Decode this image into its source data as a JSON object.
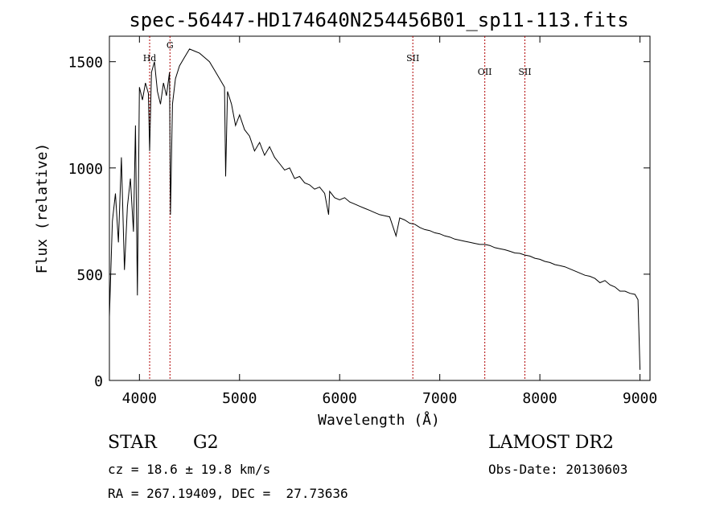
{
  "chart_data": {
    "type": "line",
    "title": "spec-56447-HD174640N254456B01_sp11-113.fits",
    "xlabel": "Wavelength (Å)",
    "ylabel": "Flux (relative)",
    "xlim": [
      3700,
      9100
    ],
    "ylim": [
      0,
      1620
    ],
    "x_ticks": [
      4000,
      5000,
      6000,
      7000,
      8000,
      9000
    ],
    "y_ticks": [
      0,
      500,
      1000,
      1500
    ],
    "grid": false,
    "lines": [
      {
        "label": "Hd",
        "x": 4102
      },
      {
        "label": "G",
        "x": 4305
      },
      {
        "label": "SII",
        "x": 6731
      },
      {
        "label": "OII",
        "x": 7450
      },
      {
        "label": "SII",
        "x": 7850
      }
    ],
    "series": [
      {
        "x": [
          3700,
          3730,
          3760,
          3790,
          3820,
          3850,
          3880,
          3910,
          3940,
          3960,
          3980,
          4000,
          4030,
          4060,
          4090,
          4102,
          4120,
          4150,
          4180,
          4210,
          4240,
          4270,
          4300,
          4310,
          4330,
          4360,
          4400,
          4450,
          4500,
          4550,
          4600,
          4650,
          4700,
          4750,
          4800,
          4850,
          4861,
          4880,
          4920,
          4960,
          5000,
          5050,
          5100,
          5150,
          5200,
          5250,
          5300,
          5350,
          5400,
          5450,
          5500,
          5550,
          5600,
          5650,
          5700,
          5750,
          5800,
          5850,
          5890,
          5900,
          5950,
          6000,
          6050,
          6100,
          6150,
          6200,
          6250,
          6300,
          6350,
          6400,
          6450,
          6500,
          6563,
          6600,
          6650,
          6700,
          6750,
          6800,
          6850,
          6900,
          6950,
          7000,
          7050,
          7100,
          7150,
          7200,
          7250,
          7300,
          7350,
          7400,
          7450,
          7500,
          7550,
          7600,
          7650,
          7700,
          7750,
          7800,
          7850,
          7900,
          7950,
          8000,
          8050,
          8100,
          8150,
          8200,
          8250,
          8300,
          8350,
          8400,
          8450,
          8500,
          8550,
          8600,
          8650,
          8700,
          8750,
          8800,
          8850,
          8900,
          8950,
          8980,
          9000
        ],
        "y": [
          300,
          750,
          880,
          650,
          1050,
          520,
          820,
          950,
          700,
          1200,
          400,
          1380,
          1320,
          1400,
          1350,
          1080,
          1450,
          1500,
          1360,
          1300,
          1400,
          1340,
          1450,
          780,
          1300,
          1420,
          1480,
          1520,
          1560,
          1550,
          1540,
          1520,
          1500,
          1460,
          1420,
          1380,
          960,
          1360,
          1300,
          1200,
          1250,
          1180,
          1150,
          1080,
          1120,
          1060,
          1100,
          1050,
          1020,
          990,
          1000,
          950,
          960,
          930,
          920,
          900,
          910,
          880,
          780,
          890,
          860,
          850,
          860,
          840,
          830,
          820,
          810,
          800,
          790,
          780,
          775,
          770,
          680,
          765,
          755,
          740,
          735,
          720,
          710,
          705,
          695,
          690,
          680,
          675,
          665,
          660,
          655,
          650,
          645,
          640,
          640,
          635,
          625,
          620,
          615,
          608,
          600,
          598,
          590,
          585,
          575,
          570,
          560,
          555,
          545,
          540,
          535,
          525,
          515,
          505,
          495,
          490,
          480,
          460,
          470,
          450,
          440,
          420,
          420,
          410,
          405,
          380,
          50
        ]
      }
    ],
    "annotations": {
      "object_type": "STAR",
      "subclass": "G2",
      "survey": "LAMOST DR2",
      "cz": "cz = 18.6 ± 19.8 km/s",
      "obs_date": "Obs-Date: 20130603",
      "radec": "RA = 267.19409, DEC =  27.73636"
    }
  }
}
